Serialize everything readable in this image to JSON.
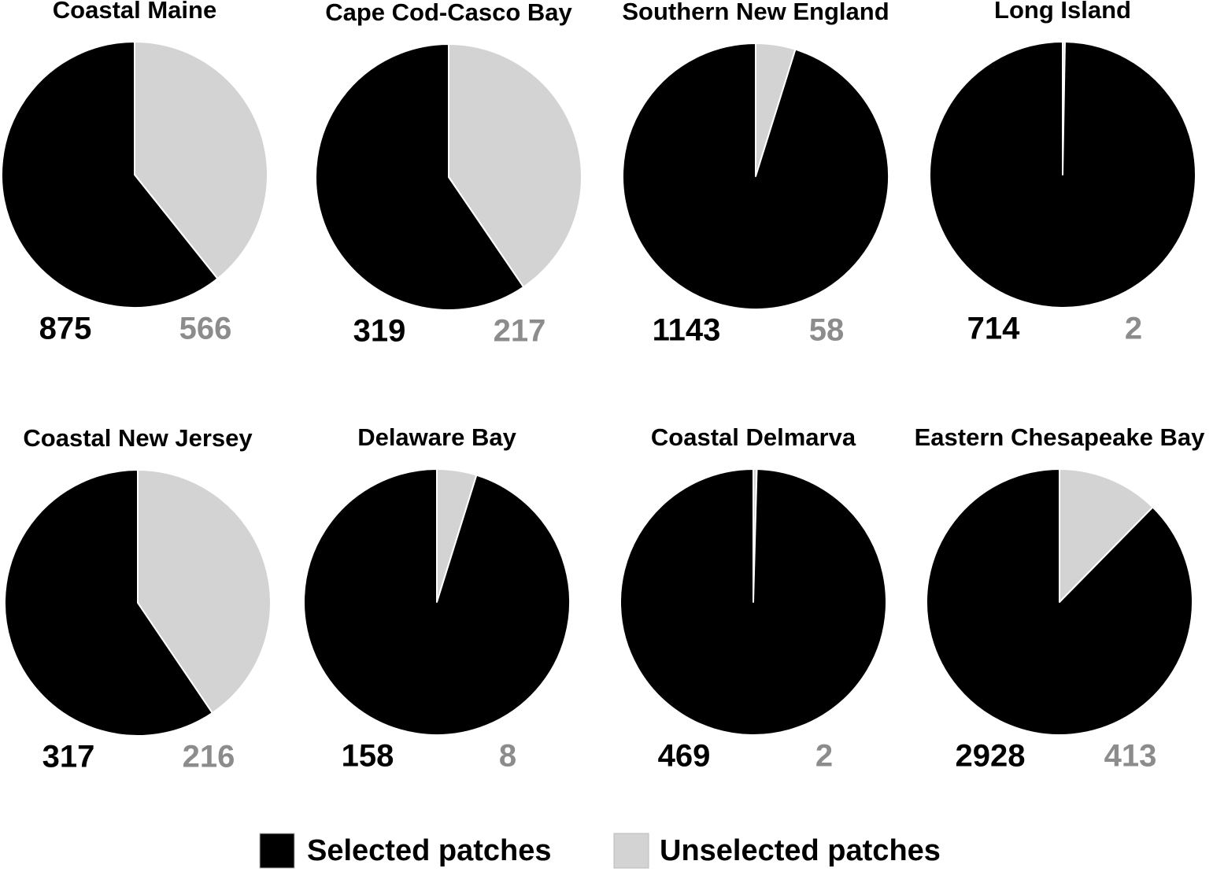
{
  "chart_data": [
    {
      "type": "pie",
      "title": "Coastal Maine",
      "values": [
        875,
        566
      ]
    },
    {
      "type": "pie",
      "title": "Cape Cod-Casco Bay",
      "values": [
        319,
        217
      ]
    },
    {
      "type": "pie",
      "title": "Southern New England",
      "values": [
        1143,
        58
      ]
    },
    {
      "type": "pie",
      "title": "Long Island",
      "values": [
        714,
        2
      ]
    },
    {
      "type": "pie",
      "title": "Coastal New Jersey",
      "values": [
        317,
        216
      ]
    },
    {
      "type": "pie",
      "title": "Delaware Bay",
      "values": [
        158,
        8
      ]
    },
    {
      "type": "pie",
      "title": "Coastal Delmarva",
      "values": [
        469,
        2
      ]
    },
    {
      "type": "pie",
      "title": "Eastern Chesapeake Bay",
      "values": [
        2928,
        413
      ]
    }
  ],
  "legend": {
    "labels": [
      "Selected patches",
      "Unselected patches"
    ],
    "colors": [
      "#000000",
      "#d3d3d3"
    ],
    "label_colors": [
      "#000000",
      "#8c8c8c"
    ]
  }
}
